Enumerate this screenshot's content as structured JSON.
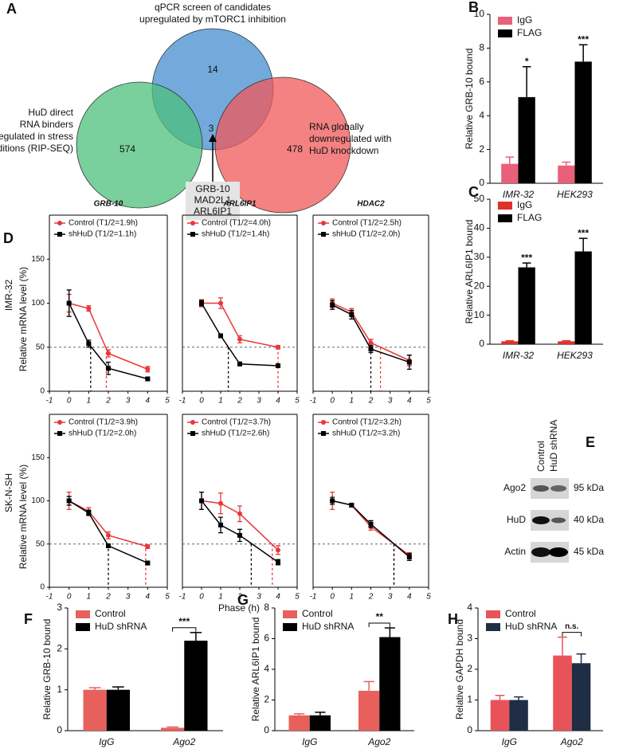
{
  "venn": {
    "panel": "A",
    "sets": [
      {
        "label": [
          "qPCR screen of candidates",
          "upregulated by mTORC1 inhibition"
        ],
        "count": 14
      },
      {
        "label": [
          "HuD direct",
          "RNA binders",
          "upregulated in stress",
          "conditions (RIP-SEQ)"
        ],
        "count": 574
      },
      {
        "label": [
          "RNA globally",
          "downregulated with",
          "HuD knockdown"
        ],
        "count": 478
      }
    ],
    "intersection": {
      "count": 3,
      "genes": [
        "GRB-10",
        "MAD2L1",
        "ARL6IP1"
      ]
    }
  },
  "blot": {
    "panel": "E",
    "lanes": [
      "Control",
      "HuD shRNA"
    ],
    "rows": [
      {
        "protein": "Ago2",
        "size": "95 kDa"
      },
      {
        "protein": "HuD",
        "size": "40 kDa"
      },
      {
        "protein": "Actin",
        "size": "45 kDa"
      }
    ]
  },
  "panel_d": {
    "panel": "D",
    "x_label": "Phase (h)"
  },
  "chart_data": [
    {
      "type": "bar",
      "panel": "B",
      "y_label": "Relative GRB-10 bound",
      "categories": [
        "IMR-32",
        "HEK293"
      ],
      "series": [
        {
          "name": "IgG",
          "color": "#e8607a",
          "values": [
            1.15,
            1.05
          ],
          "errors": [
            0.4,
            0.2
          ]
        },
        {
          "name": "FLAG",
          "color": "#000000",
          "values": [
            5.1,
            7.2
          ],
          "errors": [
            1.8,
            1.0
          ]
        }
      ],
      "annotations": [
        "*",
        "***"
      ],
      "bracket": false,
      "ylim": [
        0,
        10
      ],
      "yticks": [
        0,
        2,
        4,
        6,
        8,
        10
      ],
      "legend": "upper left"
    },
    {
      "type": "bar",
      "panel": "C",
      "y_label": "Relative ARL6IP1 bound",
      "categories": [
        "IMR-32",
        "HEK293"
      ],
      "series": [
        {
          "name": "IgG",
          "color": "#e0302a",
          "values": [
            1,
            1
          ],
          "errors": [
            0.2,
            0.2
          ]
        },
        {
          "name": "FLAG",
          "color": "#000000",
          "values": [
            26.5,
            32
          ],
          "errors": [
            1.5,
            4.5
          ]
        }
      ],
      "annotations": [
        "***",
        "***"
      ],
      "bracket": false,
      "ylim": [
        0,
        50
      ],
      "yticks": [
        0,
        10,
        20,
        30,
        40,
        50
      ],
      "legend": "upper left"
    },
    {
      "type": "line",
      "title": "GRB-10",
      "row_label": "IMR-32",
      "y_label": "Relative mRNA level (%)",
      "x": [
        0,
        1,
        2,
        4
      ],
      "series": [
        {
          "name": "Control (T1/2=1.9h)",
          "color": "#e8373a",
          "marker": "circle",
          "values": [
            100,
            94,
            43,
            25
          ],
          "errors": [
            10,
            3,
            4,
            3
          ],
          "half_life": 1.9
        },
        {
          "name": "shHuD (T1/2=1.1h)",
          "color": "#000000",
          "marker": "square",
          "values": [
            100,
            54,
            26,
            14
          ],
          "errors": [
            15,
            4,
            7,
            2
          ],
          "half_life": 1.1
        }
      ],
      "xlim": [
        -1,
        5
      ],
      "xticks": [
        -1,
        0,
        1,
        2,
        3,
        4,
        5
      ],
      "ylim": [
        0,
        200
      ],
      "yticks": [
        0,
        50,
        100,
        150
      ],
      "reference_y": 50
    },
    {
      "type": "line",
      "title": "ARL6IP1",
      "x": [
        0,
        1,
        2,
        4
      ],
      "series": [
        {
          "name": "Control (T1/2=4.0h)",
          "color": "#e8373a",
          "marker": "circle",
          "values": [
            100,
            100,
            59,
            50
          ],
          "errors": [
            4,
            6,
            4,
            2
          ],
          "half_life": 4.0
        },
        {
          "name": "shHuD (T1/2=1.4h)",
          "color": "#000000",
          "marker": "square",
          "values": [
            100,
            63,
            31,
            29
          ],
          "errors": [
            3,
            2,
            2,
            2
          ],
          "half_life": 1.4
        }
      ],
      "xlim": [
        -1,
        5
      ],
      "xticks": [
        -1,
        0,
        1,
        2,
        3,
        4,
        5
      ],
      "ylim": [
        0,
        200
      ],
      "reference_y": 50
    },
    {
      "type": "line",
      "title": "HDAC2",
      "x": [
        0,
        1,
        2,
        4
      ],
      "series": [
        {
          "name": "Control (T1/2=2.5h)",
          "color": "#e8373a",
          "marker": "circle",
          "values": [
            100,
            90,
            55,
            35
          ],
          "errors": [
            5,
            4,
            4,
            6
          ],
          "half_life": 2.5
        },
        {
          "name": "shHuD (T1/2=2.0h)",
          "color": "#000000",
          "marker": "square",
          "values": [
            98,
            87,
            48,
            33
          ],
          "errors": [
            5,
            5,
            4,
            8
          ],
          "half_life": 2.0
        }
      ],
      "xlim": [
        -1,
        5
      ],
      "xticks": [
        -1,
        0,
        1,
        2,
        3,
        4,
        5
      ],
      "ylim": [
        0,
        200
      ],
      "reference_y": 50
    },
    {
      "type": "line",
      "row_label": "SK-N-SH",
      "y_label": "Relative mRNA level (%)",
      "x": [
        0,
        1,
        2,
        4
      ],
      "series": [
        {
          "name": "Control (T1/2=3.9h)",
          "color": "#e8373a",
          "marker": "circle",
          "values": [
            100,
            88,
            60,
            47
          ],
          "errors": [
            10,
            4,
            4,
            2
          ],
          "half_life": 3.9
        },
        {
          "name": "shHuD (T1/2=2.0h)",
          "color": "#000000",
          "marker": "square",
          "values": [
            100,
            86,
            48,
            28
          ],
          "errors": [
            5,
            3,
            2,
            2
          ],
          "half_life": 2.0
        }
      ],
      "xlim": [
        -1,
        5
      ],
      "xticks": [
        -1,
        0,
        1,
        2,
        3,
        4,
        5
      ],
      "ylim": [
        0,
        200
      ],
      "yticks": [
        0,
        50,
        100,
        150
      ],
      "reference_y": 50
    },
    {
      "type": "line",
      "x": [
        0,
        1,
        2,
        4
      ],
      "series": [
        {
          "name": "Control (T1/2=3.7h)",
          "color": "#e8373a",
          "marker": "circle",
          "values": [
            100,
            97,
            85,
            43
          ],
          "errors": [
            10,
            12,
            9,
            5
          ],
          "half_life": 3.7
        },
        {
          "name": "shHuD (T1/2=2.6h)",
          "color": "#000000",
          "marker": "square",
          "values": [
            100,
            72,
            60,
            29
          ],
          "errors": [
            10,
            9,
            7,
            3
          ],
          "half_life": 2.6
        }
      ],
      "xlim": [
        -1,
        5
      ],
      "xticks": [
        -1,
        0,
        1,
        2,
        3,
        4,
        5
      ],
      "ylim": [
        0,
        200
      ],
      "reference_y": 50
    },
    {
      "type": "line",
      "x": [
        0,
        1,
        2,
        4
      ],
      "series": [
        {
          "name": "Control (T1/2=3.2h)",
          "color": "#e8373a",
          "marker": "circle",
          "values": [
            100,
            95,
            70,
            37
          ],
          "errors": [
            10,
            2,
            4,
            3
          ],
          "half_life": 3.2
        },
        {
          "name": "shHuD (T1/2=3.2h)",
          "color": "#000000",
          "marker": "square",
          "values": [
            100,
            95,
            73,
            35
          ],
          "errors": [
            4,
            2,
            4,
            4
          ],
          "half_life": 3.2
        }
      ],
      "xlim": [
        -1,
        5
      ],
      "xticks": [
        -1,
        0,
        1,
        2,
        3,
        4,
        5
      ],
      "ylim": [
        0,
        200
      ],
      "reference_y": 50
    },
    {
      "type": "bar",
      "panel": "F",
      "y_label": "Relative GRB-10 bound",
      "categories": [
        "IgG",
        "Ago2"
      ],
      "series": [
        {
          "name": "Control",
          "color": "#e8605c",
          "values": [
            1.0,
            0.07
          ],
          "errors": [
            0.05,
            0.02
          ]
        },
        {
          "name": "HuD shRNA",
          "color": "#000000",
          "values": [
            1.0,
            2.2
          ],
          "errors": [
            0.07,
            0.2
          ]
        }
      ],
      "annotations": [
        null,
        "***"
      ],
      "bracket": true,
      "ylim": [
        0,
        3
      ],
      "yticks": [
        0,
        1,
        2,
        3
      ],
      "legend": "upper left"
    },
    {
      "type": "bar",
      "panel": "G",
      "y_label": "Relative ARL6IP1 bound",
      "categories": [
        "IgG",
        "Ago2"
      ],
      "series": [
        {
          "name": "Control",
          "color": "#e8605c",
          "values": [
            1.0,
            2.6
          ],
          "errors": [
            0.1,
            0.6
          ]
        },
        {
          "name": "HuD shRNA",
          "color": "#000000",
          "values": [
            1.0,
            6.1
          ],
          "errors": [
            0.2,
            0.6
          ]
        }
      ],
      "annotations": [
        null,
        "**"
      ],
      "bracket": true,
      "ylim": [
        0,
        8
      ],
      "yticks": [
        0,
        2,
        4,
        6,
        8
      ],
      "legend": "upper left"
    },
    {
      "type": "bar",
      "panel": "H",
      "y_label": "Relative GAPDH bound",
      "categories": [
        "IgG",
        "Ago2"
      ],
      "series": [
        {
          "name": "Control",
          "color": "#e8535a",
          "values": [
            1.0,
            2.45
          ],
          "errors": [
            0.15,
            0.6
          ]
        },
        {
          "name": "HuD shRNA",
          "color": "#1f2d45",
          "values": [
            1.0,
            2.2
          ],
          "errors": [
            0.1,
            0.3
          ]
        }
      ],
      "annotations": [
        null,
        "n.s."
      ],
      "bracket": true,
      "ylim": [
        0,
        4
      ],
      "yticks": [
        0,
        1,
        2,
        3,
        4
      ],
      "legend": "upper left"
    }
  ]
}
